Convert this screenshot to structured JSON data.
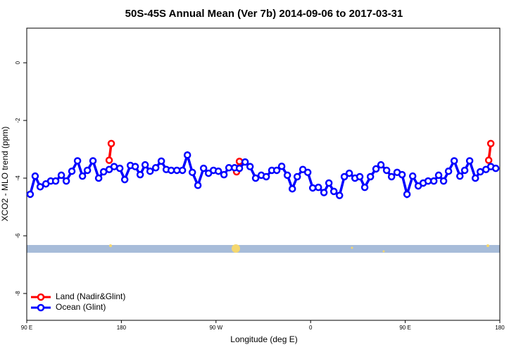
{
  "chart_data": {
    "type": "line",
    "title": "50S-45S Annual Mean (Ver 7b)   2014-09-06 to 2017-03-31",
    "x_label": "Longitude (deg E)",
    "y_label": "XCO2 - MLO trend (ppm)",
    "xlim": [
      90,
      540
    ],
    "ylim": [
      -8.93,
      1.2
    ],
    "xticks": [
      {
        "value": 90,
        "label": "90 E"
      },
      {
        "value": 180,
        "label": "180"
      },
      {
        "value": 270,
        "label": "90 W"
      },
      {
        "value": 360,
        "label": "0"
      },
      {
        "value": 450,
        "label": "90 E"
      },
      {
        "value": 540,
        "label": "180"
      }
    ],
    "yticks": [
      0,
      -2,
      -4,
      -6,
      -8
    ],
    "legend": "bottom-left",
    "series": [
      {
        "name": "Land (Nadir&Glint)",
        "color": "#ff0000",
        "x": [
          168.4,
          170.4,
          null,
          289.6,
          292.3,
          null,
          529.4,
          531.4
        ],
        "values": [
          -3.38,
          -2.8,
          null,
          -3.78,
          -3.42,
          null,
          -3.38,
          -2.8
        ]
      },
      {
        "name": "Ocean (Glint)",
        "color": "#0000ff",
        "x": [
          93.3,
          98,
          102.8,
          108.2,
          112.8,
          117.5,
          122.9,
          127.6,
          132.9,
          138.3,
          143,
          147.7,
          153,
          158.4,
          163.1,
          168.4,
          173.1,
          178.5,
          183.2,
          188.6,
          193.2,
          197.9,
          202.6,
          207.3,
          212.7,
          218,
          222.7,
          227.4,
          232.8,
          238.1,
          242.8,
          247.5,
          252.8,
          258.2,
          262.9,
          267.6,
          272.3,
          277.6,
          282.3,
          287.7,
          292.3,
          297.7,
          302.4,
          307.7,
          313.1,
          317.8,
          323.1,
          327.8,
          332.5,
          337.9,
          342.6,
          347.3,
          352.6,
          357.3,
          362,
          367.4,
          372.7,
          377.4,
          382.1,
          387.5,
          392.1,
          396.8,
          402.2,
          406.8,
          411.5,
          416.9,
          422.2,
          426.9,
          432.3,
          437,
          442.3,
          447,
          451.7,
          457.1,
          462.4,
          467.1,
          471.8,
          477.2,
          481.8,
          486.5,
          491.2,
          496.6,
          502,
          506.6,
          511.3,
          516.7,
          521.4,
          526.8,
          531.4,
          536.1
        ],
        "values": [
          -4.56,
          -3.93,
          -4.3,
          -4.2,
          -4.1,
          -4.1,
          -3.9,
          -4.1,
          -3.76,
          -3.4,
          -3.93,
          -3.73,
          -3.4,
          -4.0,
          -3.78,
          -3.7,
          -3.6,
          -3.66,
          -4.05,
          -3.56,
          -3.6,
          -3.88,
          -3.54,
          -3.76,
          -3.64,
          -3.41,
          -3.7,
          -3.73,
          -3.73,
          -3.73,
          -3.2,
          -3.8,
          -4.25,
          -3.66,
          -3.83,
          -3.73,
          -3.76,
          -3.88,
          -3.64,
          -3.64,
          -3.66,
          -3.44,
          -3.6,
          -4.0,
          -3.9,
          -3.95,
          -3.73,
          -3.73,
          -3.59,
          -3.9,
          -4.37,
          -3.95,
          -3.7,
          -3.8,
          -4.34,
          -4.32,
          -4.5,
          -4.17,
          -4.46,
          -4.6,
          -3.95,
          -3.83,
          -4.0,
          -3.95,
          -4.32,
          -3.95,
          -3.68,
          -3.54,
          -3.73,
          -3.95,
          -3.8,
          -3.88,
          -4.56,
          -3.93,
          -4.27,
          -4.17,
          -4.1,
          -4.1,
          -3.9,
          -4.1,
          -3.76,
          -3.4,
          -3.93,
          -3.73,
          -3.4,
          -4.0,
          -3.78,
          -3.7,
          -3.6,
          -3.66
        ]
      }
    ]
  }
}
